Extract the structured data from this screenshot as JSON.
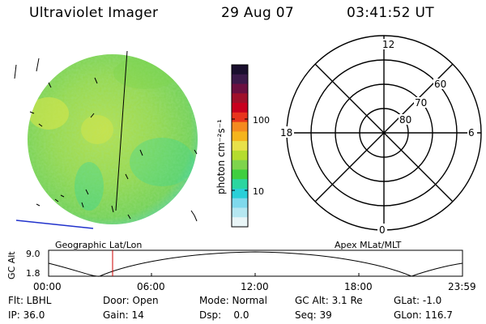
{
  "header": {
    "instrument": "Ultraviolet Imager",
    "date": "29 Aug 07",
    "time": "03:41:52 UT"
  },
  "colorbar": {
    "label": "photon cm⁻²s⁻¹",
    "ticks": [
      "100",
      "10"
    ],
    "colors": [
      "#1a0f2e",
      "#3b1a4a",
      "#6b1040",
      "#a0102a",
      "#c8001e",
      "#e8341c",
      "#f58a1f",
      "#f5b41c",
      "#e8e14a",
      "#b5dd2e",
      "#7ed44c",
      "#3fcf3f",
      "#2bd6a0",
      "#2ad0d8",
      "#7fd9ec",
      "#b5e7f1",
      "#e9f5f7"
    ]
  },
  "polar": {
    "labels": {
      "top": "12",
      "left": "18",
      "right": "6",
      "bottom": "0"
    },
    "lat_labels": [
      "60",
      "70",
      "80"
    ]
  },
  "orbit": {
    "title_left": "Geographic Lat/Lon",
    "title_right": "Apex MLat/MLT",
    "y_title": "GC Alt",
    "y_ticks": [
      "9.0",
      "1.8"
    ],
    "x_ticks": [
      "00:00",
      "06:00",
      "12:00",
      "18:00",
      "23:59"
    ]
  },
  "footer": {
    "row1": [
      "Flt: LBHL",
      "Door: Open",
      "Mode: Normal",
      "GC Alt: 3.1 Re",
      "GLat: -1.0"
    ],
    "row2": [
      "IP: 36.0",
      "Gain: 14",
      "Dsp:    0.0",
      "Seq: 39",
      "GLon: 116.7"
    ]
  }
}
